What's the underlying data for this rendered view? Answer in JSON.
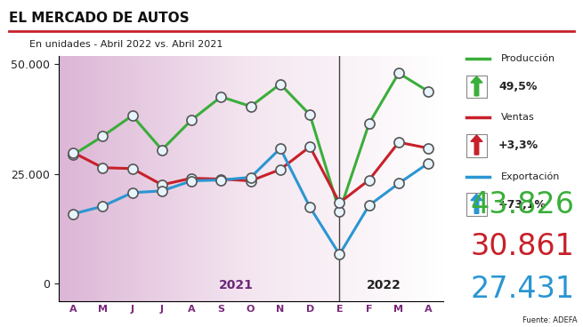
{
  "chart_data": {
    "type": "line",
    "title": "EL MERCADO DE AUTOS",
    "subtitle": "En unidades - Abril 2022 vs. Abril 2021",
    "categories": [
      "A",
      "M",
      "J",
      "J",
      "A",
      "S",
      "O",
      "N",
      "D",
      "E",
      "F",
      "M",
      "A"
    ],
    "year_labels": [
      "2021",
      "2022"
    ],
    "source": "Fuente: ADEFA",
    "ylim": [
      -4000,
      52000
    ],
    "yticks": [
      0,
      {
        "value": 25000,
        "label": "25.000"
      },
      {
        "value": 50000,
        "label": "50.000"
      }
    ],
    "marker": "o",
    "grid": false,
    "series": [
      {
        "name": "Producción",
        "color": "#3aae3a",
        "change_label": "49,5%",
        "last_label": "43.826",
        "values": [
          29318,
          33600,
          38300,
          30500,
          37300,
          42600,
          40400,
          45500,
          38500,
          16400,
          36500,
          48000,
          43826
        ]
      },
      {
        "name": "Ventas",
        "color": "#c8202a",
        "change_label": "+3,3%",
        "last_label": "30.861",
        "values": [
          29875,
          26400,
          26200,
          22500,
          24000,
          23800,
          23400,
          26000,
          31200,
          18400,
          23600,
          32200,
          30861
        ]
      },
      {
        "name": "Exportación",
        "color": "#2a96d2",
        "change_label": "+73,1%",
        "last_label": "27.431",
        "values": [
          15847,
          17600,
          20700,
          21100,
          23400,
          23600,
          24200,
          30800,
          17400,
          6600,
          17800,
          22800,
          27431
        ]
      }
    ]
  }
}
